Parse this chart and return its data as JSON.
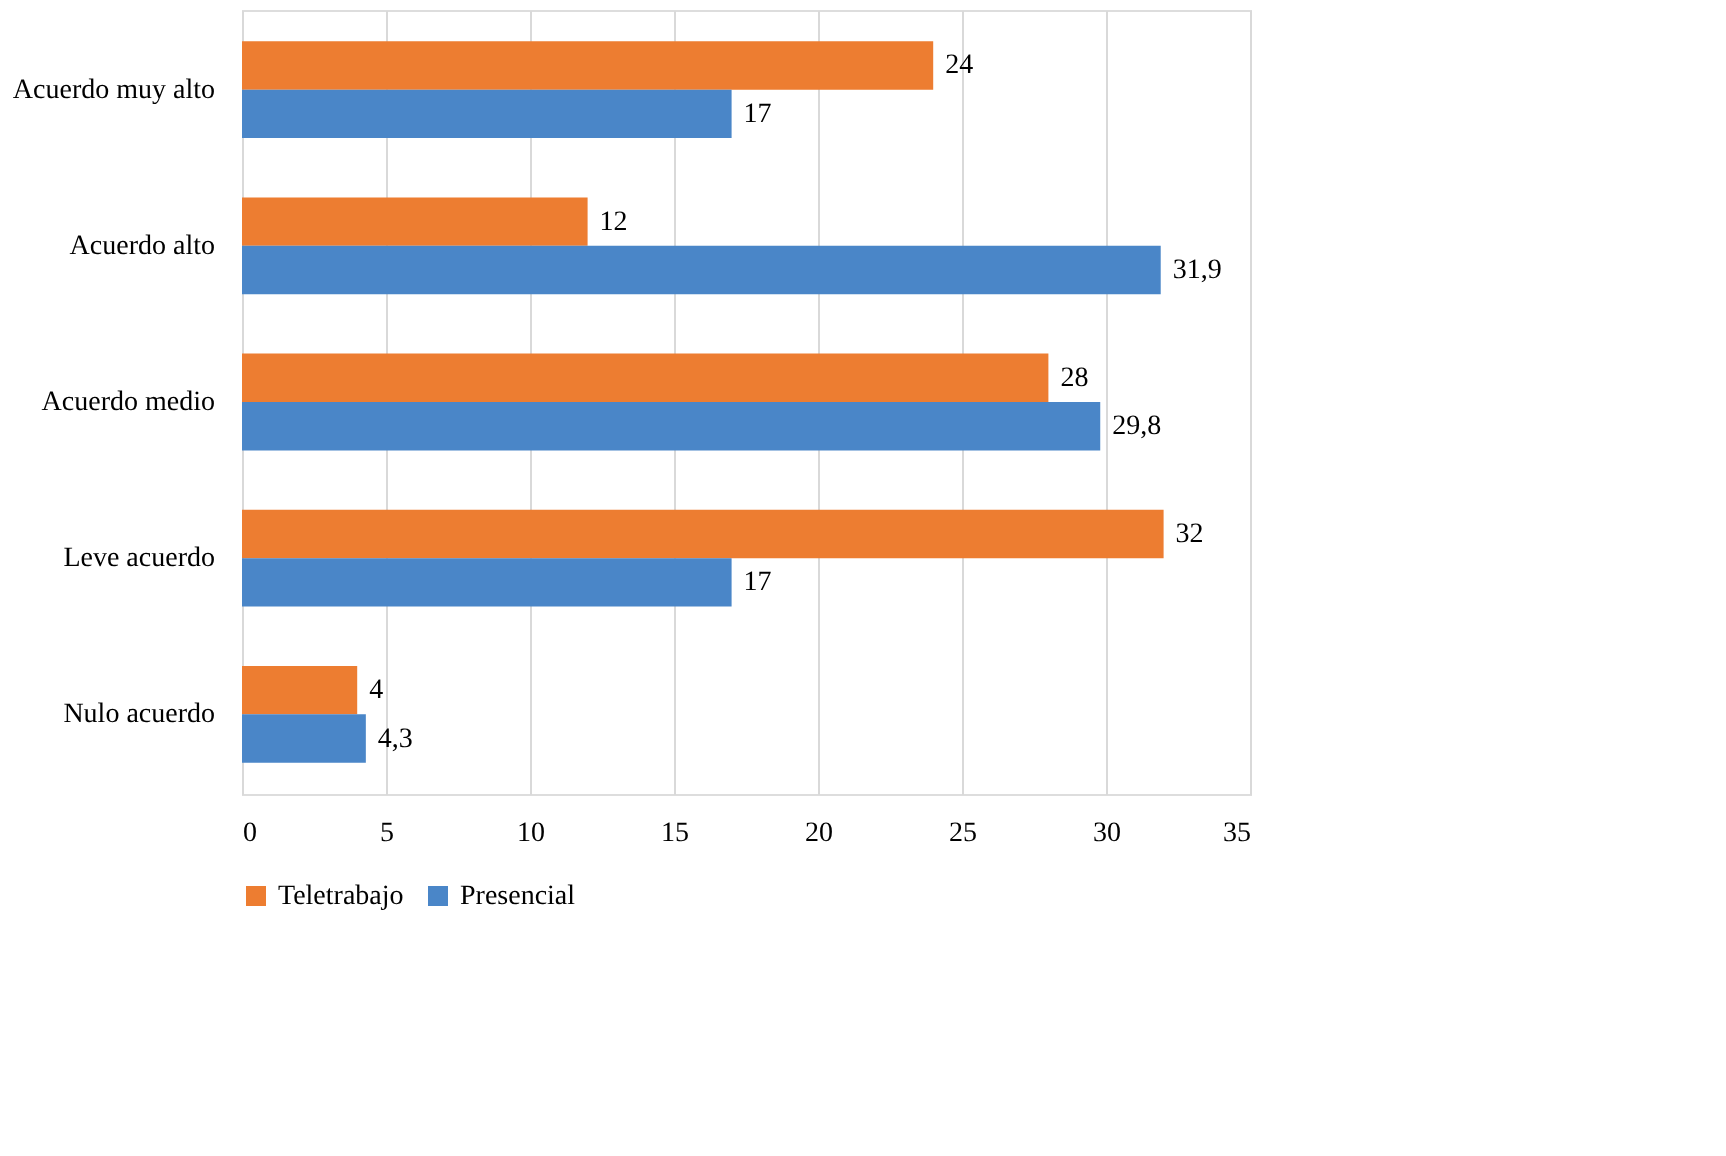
{
  "chart_data": {
    "type": "bar",
    "orientation": "horizontal",
    "categories": [
      "Acuerdo muy alto",
      "Acuerdo alto",
      "Acuerdo medio",
      "Leve acuerdo",
      "Nulo acuerdo"
    ],
    "series": [
      {
        "name": "Teletrabajo",
        "color": "#ed7d31",
        "values": [
          24,
          12,
          28,
          32,
          4
        ],
        "value_labels": [
          "24",
          "12",
          "28",
          "32",
          "4"
        ]
      },
      {
        "name": "Presencial",
        "color": "#4a86c8",
        "values": [
          17,
          31.9,
          29.8,
          17,
          4.3
        ],
        "value_labels": [
          "17",
          "31,9",
          "29,8",
          "17",
          "4,3"
        ]
      }
    ],
    "xlim": [
      0,
      35
    ],
    "xticks": [
      0,
      5,
      10,
      15,
      20,
      25,
      30,
      35
    ],
    "grid": "x",
    "legend": "bottom"
  }
}
